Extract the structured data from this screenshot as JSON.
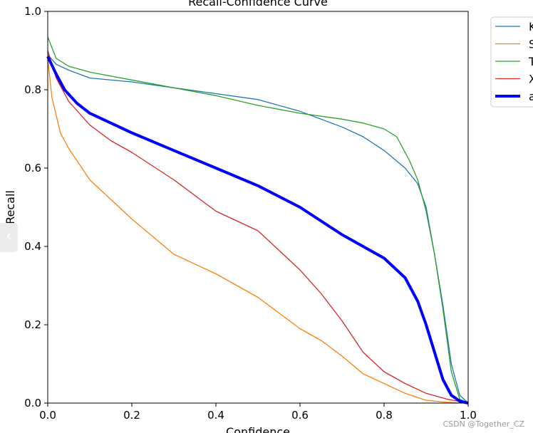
{
  "chart_data": {
    "type": "line",
    "title": "Recall-Confidence Curve",
    "xlabel": "Confidence",
    "ylabel": "Recall",
    "xlim": [
      0,
      1
    ],
    "ylim": [
      0,
      1
    ],
    "xticks": [
      "0.0",
      "0.2",
      "0.4",
      "0.6",
      "0.8",
      "1.0"
    ],
    "yticks": [
      "0.0",
      "0.2",
      "0.4",
      "0.6",
      "0.8",
      "1.0"
    ],
    "grid": false,
    "legend_placement": "outside-top-right",
    "series": [
      {
        "name": "K",
        "color": "#1f77b4",
        "width": 1.3,
        "x": [
          0,
          0.02,
          0.05,
          0.1,
          0.2,
          0.3,
          0.4,
          0.5,
          0.6,
          0.7,
          0.75,
          0.8,
          0.85,
          0.88,
          0.9,
          0.92,
          0.94,
          0.96,
          0.98,
          1.0
        ],
        "y": [
          0.89,
          0.865,
          0.85,
          0.83,
          0.82,
          0.805,
          0.79,
          0.775,
          0.745,
          0.705,
          0.68,
          0.645,
          0.6,
          0.56,
          0.5,
          0.38,
          0.25,
          0.1,
          0.02,
          0
        ]
      },
      {
        "name": "S",
        "color": "#ff7f0e",
        "width": 1.3,
        "x": [
          0,
          0.01,
          0.03,
          0.05,
          0.1,
          0.15,
          0.2,
          0.3,
          0.4,
          0.5,
          0.55,
          0.6,
          0.65,
          0.7,
          0.75,
          0.8,
          0.85,
          0.9,
          0.95,
          1.0
        ],
        "y": [
          0.88,
          0.78,
          0.69,
          0.65,
          0.57,
          0.52,
          0.47,
          0.38,
          0.33,
          0.27,
          0.23,
          0.19,
          0.16,
          0.12,
          0.075,
          0.05,
          0.025,
          0.007,
          0.002,
          0
        ]
      },
      {
        "name": "T",
        "color": "#2ca02c",
        "width": 1.3,
        "x": [
          0,
          0.02,
          0.05,
          0.1,
          0.2,
          0.3,
          0.4,
          0.5,
          0.6,
          0.7,
          0.75,
          0.8,
          0.83,
          0.86,
          0.88,
          0.9,
          0.92,
          0.94,
          0.96,
          0.98,
          1.0
        ],
        "y": [
          0.935,
          0.88,
          0.86,
          0.845,
          0.825,
          0.805,
          0.785,
          0.76,
          0.74,
          0.725,
          0.715,
          0.7,
          0.68,
          0.62,
          0.57,
          0.49,
          0.38,
          0.24,
          0.08,
          0.01,
          0
        ]
      },
      {
        "name": "X",
        "color": "#d62728",
        "width": 1.3,
        "x": [
          0,
          0.02,
          0.05,
          0.1,
          0.15,
          0.2,
          0.3,
          0.4,
          0.5,
          0.55,
          0.6,
          0.65,
          0.7,
          0.75,
          0.8,
          0.85,
          0.9,
          0.95,
          1.0
        ],
        "y": [
          0.9,
          0.83,
          0.77,
          0.71,
          0.67,
          0.64,
          0.57,
          0.49,
          0.44,
          0.39,
          0.34,
          0.28,
          0.21,
          0.13,
          0.08,
          0.05,
          0.025,
          0.01,
          0
        ]
      },
      {
        "name": "a",
        "color": "#0000ff",
        "width": 4,
        "x": [
          0,
          0.02,
          0.04,
          0.07,
          0.1,
          0.2,
          0.3,
          0.4,
          0.5,
          0.6,
          0.7,
          0.8,
          0.85,
          0.88,
          0.9,
          0.92,
          0.94,
          0.96,
          0.98,
          1.0
        ],
        "y": [
          0.885,
          0.84,
          0.8,
          0.765,
          0.74,
          0.69,
          0.645,
          0.6,
          0.555,
          0.5,
          0.43,
          0.37,
          0.32,
          0.26,
          0.2,
          0.13,
          0.06,
          0.02,
          0.005,
          0
        ]
      }
    ]
  },
  "overlay": {
    "prev_icon": "chevron-left-icon",
    "prev_glyph": "‹",
    "watermark": "CSDN @Together_CZ"
  }
}
